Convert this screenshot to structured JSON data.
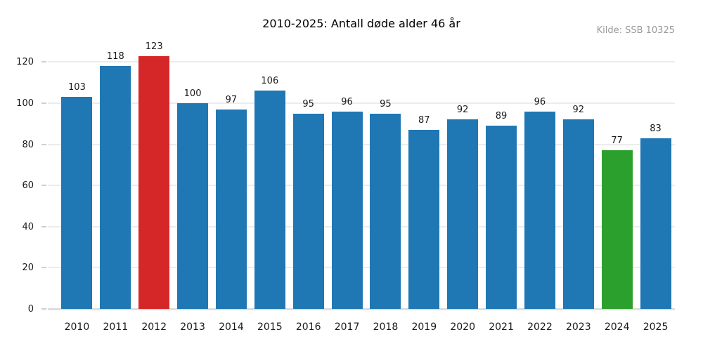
{
  "chart_data": {
    "type": "bar",
    "title": "2010-2025: Antall døde alder 46 år",
    "annotation": "Kilde: SSB 10325",
    "categories": [
      "2010",
      "2011",
      "2012",
      "2013",
      "2014",
      "2015",
      "2016",
      "2017",
      "2018",
      "2019",
      "2020",
      "2021",
      "2022",
      "2023",
      "2024",
      "2025"
    ],
    "values": [
      103,
      118,
      123,
      100,
      97,
      106,
      95,
      96,
      95,
      87,
      92,
      89,
      96,
      92,
      77,
      83
    ],
    "bar_colors": [
      "#1f77b4",
      "#1f77b4",
      "#d62728",
      "#1f77b4",
      "#1f77b4",
      "#1f77b4",
      "#1f77b4",
      "#1f77b4",
      "#1f77b4",
      "#1f77b4",
      "#1f77b4",
      "#1f77b4",
      "#1f77b4",
      "#1f77b4",
      "#2ca02c",
      "#1f77b4"
    ],
    "highlights": {
      "max": {
        "category": "2012",
        "value": 123,
        "color": "#d62728"
      },
      "min": {
        "category": "2024",
        "value": 77,
        "color": "#2ca02c"
      }
    },
    "xlabel": "",
    "ylabel": "",
    "yticks": [
      0,
      20,
      40,
      60,
      80,
      100,
      120
    ],
    "ylim": [
      0,
      129
    ],
    "grid": "horizontal",
    "value_labels": true,
    "legend": "none",
    "colors": {
      "default_bar": "#1f77b4",
      "max_bar": "#d62728",
      "min_bar": "#2ca02c",
      "gridline": "#ececec",
      "axis_line": "#dedede",
      "tick_mark": "#cfcfcf",
      "text": "#1a1a1a",
      "source_text": "#999999",
      "background": "#ffffff"
    }
  }
}
